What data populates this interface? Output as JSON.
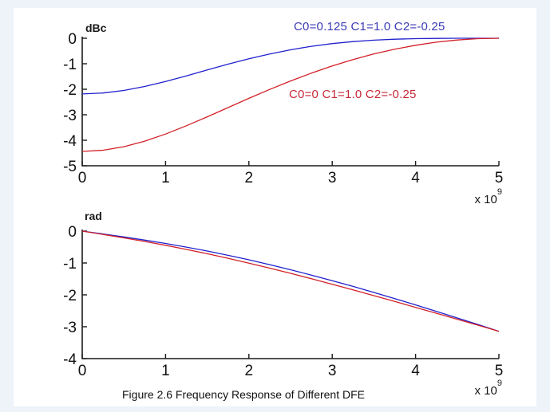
{
  "caption": "Figure 2.6 Frequency Response of Different DFE",
  "colors": {
    "page_margin": "#eef3f9",
    "canvas": "#ffffff",
    "axis": "#1a1a1a",
    "blue_series": "#2121cd",
    "red_series": "#d22027",
    "blue_label": "#3b3bb5",
    "red_label": "#c62a38"
  },
  "chart_data": [
    {
      "type": "line",
      "title": "",
      "xlabel": "",
      "ylabel": "dBc",
      "xlim": [
        0,
        5
      ],
      "ylim": [
        -5,
        0
      ],
      "x_ticks": [
        0,
        1,
        2,
        3,
        4,
        5
      ],
      "y_ticks": [
        0,
        -1,
        -2,
        -3,
        -4,
        -5
      ],
      "x_scale": {
        "base": "x 10",
        "exp": "9"
      },
      "grid": false,
      "legend_position": "inline-annotations",
      "x": [
        0,
        0.25,
        0.5,
        0.75,
        1,
        1.25,
        1.5,
        1.75,
        2,
        2.25,
        2.5,
        2.75,
        3,
        3.25,
        3.5,
        3.75,
        4,
        4.25,
        4.5,
        4.75,
        5
      ],
      "series": [
        {
          "name": "C0=0.125 C1=1.0 C2=-0.25",
          "color": "#2121cd",
          "label_color": "#3b3bb5",
          "values": [
            -2.183,
            -2.148,
            -2.048,
            -1.892,
            -1.696,
            -1.474,
            -1.244,
            -1.017,
            -0.805,
            -0.615,
            -0.452,
            -0.317,
            -0.21,
            -0.13,
            -0.074,
            -0.037,
            -0.016,
            -0.005,
            -0.001,
            0,
            0
          ]
        },
        {
          "name": "C0=0 C1=1.0 C2=-0.25",
          "color": "#d22027",
          "label_color": "#c62a38",
          "values": [
            -4.437,
            -4.39,
            -4.252,
            -4.035,
            -3.756,
            -3.432,
            -3.081,
            -2.719,
            -2.357,
            -2.007,
            -1.675,
            -1.366,
            -1.086,
            -0.834,
            -0.614,
            -0.427,
            -0.274,
            -0.154,
            -0.069,
            -0.017,
            0
          ]
        }
      ]
    },
    {
      "type": "line",
      "title": "",
      "xlabel": "",
      "ylabel": "rad",
      "xlim": [
        0,
        5
      ],
      "ylim": [
        -4,
        0
      ],
      "x_ticks": [
        0,
        1,
        2,
        3,
        4,
        5
      ],
      "y_ticks": [
        0,
        -1,
        -2,
        -3,
        -4
      ],
      "x_scale": {
        "base": "x 10",
        "exp": "9"
      },
      "grid": false,
      "legend_position": "none",
      "x": [
        0,
        0.25,
        0.5,
        0.75,
        1,
        1.25,
        1.5,
        1.75,
        2,
        2.25,
        2.5,
        2.75,
        3,
        3.25,
        3.5,
        3.75,
        4,
        4.25,
        4.5,
        4.75,
        5
      ],
      "series": [
        {
          "name": "C0=0.125 C1=1.0 C2=-0.25",
          "color": "#2121cd",
          "label_color": "#3b3bb5",
          "values": [
            0,
            -0.09,
            -0.183,
            -0.282,
            -0.388,
            -0.503,
            -0.626,
            -0.759,
            -0.901,
            -1.053,
            -1.212,
            -1.379,
            -1.554,
            -1.736,
            -1.924,
            -2.117,
            -2.316,
            -2.518,
            -2.724,
            -2.932,
            -3.142
          ]
        },
        {
          "name": "C0=0 C1=1.0 C2=-0.25",
          "color": "#d22027",
          "label_color": "#c62a38",
          "values": [
            0,
            -0.105,
            -0.213,
            -0.326,
            -0.446,
            -0.574,
            -0.71,
            -0.853,
            -1.004,
            -1.162,
            -1.326,
            -1.495,
            -1.668,
            -1.845,
            -2.025,
            -2.207,
            -2.392,
            -2.578,
            -2.765,
            -2.953,
            -3.142
          ]
        }
      ]
    }
  ]
}
